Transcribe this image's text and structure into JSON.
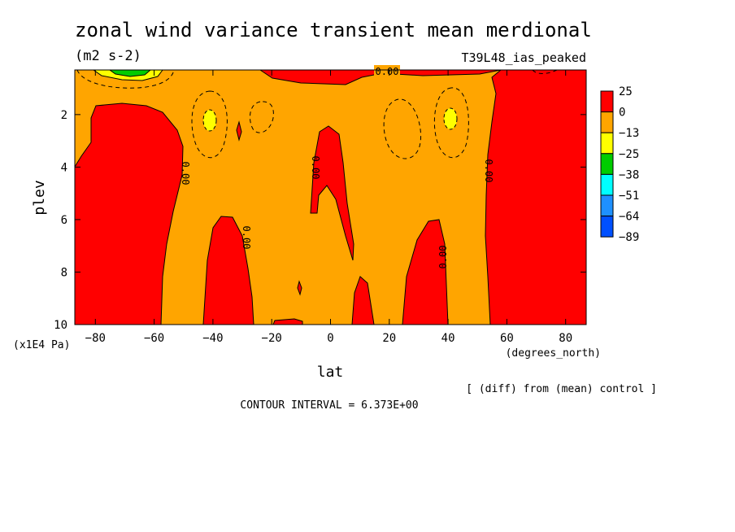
{
  "chart_data": {
    "type": "heatmap",
    "title": "zonal wind variance transient mean merdional",
    "units": "(m2 s-2)",
    "run_label": "T39L48_ias_peaked",
    "xlabel": "lat",
    "ylabel": "plev",
    "x_units": "(degrees_north)",
    "y_units": "(x1E4 Pa)",
    "xlim": [
      -87,
      87
    ],
    "ylim": [
      10,
      0.3
    ],
    "x_ticks": [
      "-80",
      "-60",
      "-40",
      "-20",
      "0",
      "20",
      "40",
      "60",
      "80"
    ],
    "y_ticks": [
      "2",
      "4",
      "6",
      "8",
      "10"
    ],
    "colorbar": {
      "labels": [
        "25",
        "0",
        "-13",
        "-25",
        "-38",
        "-51",
        "-64",
        "-89"
      ],
      "colors": [
        "#ff0000",
        "#ffa500",
        "#ffff00",
        "#00cc00",
        "#00ffff",
        "#1e90ff",
        "#0050ff"
      ]
    },
    "contour_labels": [
      "0.00",
      "0.00",
      "0.00",
      "0.00",
      "0.00",
      "0.00"
    ],
    "contour_interval_text": "CONTOUR INTERVAL = 6.373E+00",
    "comparison_text": "[ (diff) from (mean) control ]"
  }
}
